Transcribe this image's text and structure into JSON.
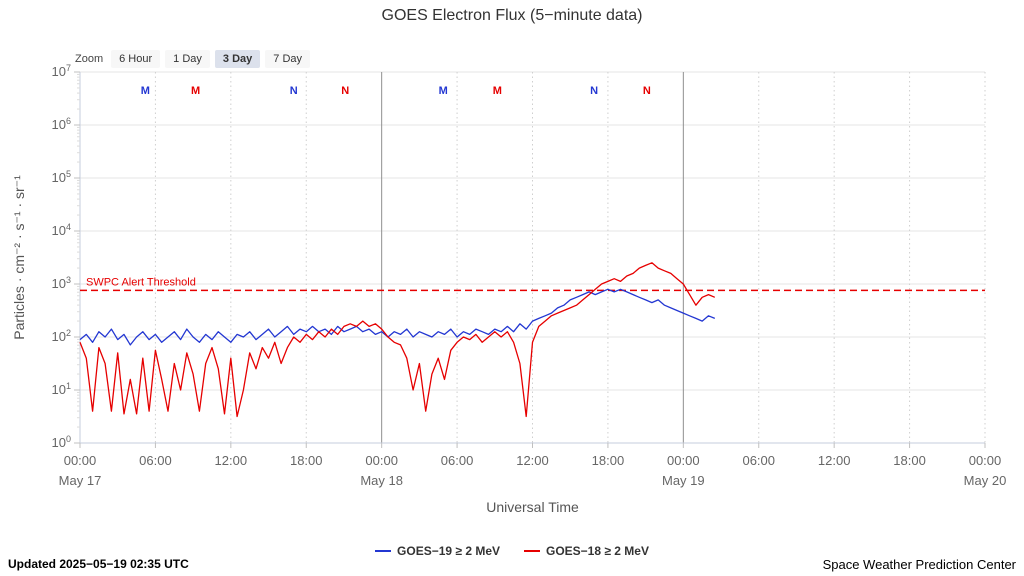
{
  "title": "GOES Electron Flux (5−minute data)",
  "zoom": {
    "label": "Zoom",
    "buttons": [
      {
        "label": "6 Hour",
        "selected": false
      },
      {
        "label": "1 Day",
        "selected": false
      },
      {
        "label": "3 Day",
        "selected": true
      },
      {
        "label": "7 Day",
        "selected": false
      }
    ]
  },
  "footer": {
    "updated": "Updated 2025−05−19 02:35 UTC",
    "source": "Space Weather Prediction Center"
  },
  "chart_data": {
    "type": "line",
    "title": "GOES Electron Flux (5−minute data)",
    "xlabel": "Universal Time",
    "ylabel": "Particles · cm⁻² · s⁻¹ · sr⁻¹",
    "x_unit": "hours since May 17 00:00 UTC",
    "x_range": [
      0,
      72
    ],
    "y_scale": "log10",
    "y_range_log": [
      0,
      7
    ],
    "y_tick_exponents": [
      0,
      1,
      2,
      3,
      4,
      5,
      6,
      7
    ],
    "grid": "on",
    "legend_position": "bottom",
    "x_ticks": [
      {
        "hour": 0,
        "label": "00:00"
      },
      {
        "hour": 6,
        "label": "06:00"
      },
      {
        "hour": 12,
        "label": "12:00"
      },
      {
        "hour": 18,
        "label": "18:00"
      },
      {
        "hour": 24,
        "label": "00:00"
      },
      {
        "hour": 30,
        "label": "06:00"
      },
      {
        "hour": 36,
        "label": "12:00"
      },
      {
        "hour": 42,
        "label": "18:00"
      },
      {
        "hour": 48,
        "label": "00:00"
      },
      {
        "hour": 54,
        "label": "06:00"
      },
      {
        "hour": 60,
        "label": "12:00"
      },
      {
        "hour": 66,
        "label": "18:00"
      },
      {
        "hour": 72,
        "label": "00:00"
      }
    ],
    "x_dates": [
      {
        "hour": 0,
        "label": "May 17"
      },
      {
        "hour": 24,
        "label": "May 18"
      },
      {
        "hour": 48,
        "label": "May 19"
      },
      {
        "hour": 72,
        "label": "May 20"
      }
    ],
    "threshold": {
      "label": "SWPC Alert Threshold",
      "log_value": 2.88,
      "color": "#e60000"
    },
    "event_markers": [
      {
        "hour": 5.2,
        "label": "M",
        "satellite": "GOES-19",
        "color": "#2337d2"
      },
      {
        "hour": 9.2,
        "label": "M",
        "satellite": "GOES-18",
        "color": "#e60000"
      },
      {
        "hour": 17.0,
        "label": "N",
        "satellite": "GOES-19",
        "color": "#2337d2"
      },
      {
        "hour": 21.1,
        "label": "N",
        "satellite": "GOES-18",
        "color": "#e60000"
      },
      {
        "hour": 28.9,
        "label": "M",
        "satellite": "GOES-19",
        "color": "#2337d2"
      },
      {
        "hour": 33.2,
        "label": "M",
        "satellite": "GOES-18",
        "color": "#e60000"
      },
      {
        "hour": 40.9,
        "label": "N",
        "satellite": "GOES-19",
        "color": "#2337d2"
      },
      {
        "hour": 45.1,
        "label": "N",
        "satellite": "GOES-18",
        "color": "#e60000"
      }
    ],
    "series": [
      {
        "name": "GOES−19 ≥ 2 MeV",
        "color": "#2337d2",
        "start_hour": 0,
        "step_hours": 0.5,
        "log10_values": [
          1.95,
          2.05,
          1.9,
          2.1,
          2.0,
          2.15,
          1.95,
          2.05,
          1.85,
          2.0,
          2.1,
          1.95,
          2.05,
          1.9,
          2.0,
          2.1,
          1.95,
          2.15,
          2.0,
          1.9,
          2.05,
          1.95,
          2.1,
          2.0,
          1.9,
          2.05,
          2.0,
          2.1,
          1.95,
          2.05,
          2.15,
          2.0,
          2.1,
          2.2,
          2.05,
          2.15,
          2.1,
          2.2,
          2.1,
          2.15,
          2.05,
          2.2,
          2.1,
          2.15,
          2.2,
          2.1,
          2.15,
          2.05,
          2.1,
          2.0,
          2.1,
          2.05,
          2.15,
          2.0,
          2.1,
          2.05,
          2.0,
          2.1,
          2.05,
          2.15,
          2.0,
          2.1,
          2.05,
          2.15,
          2.1,
          2.05,
          2.15,
          2.1,
          2.2,
          2.1,
          2.25,
          2.15,
          2.3,
          2.35,
          2.4,
          2.45,
          2.55,
          2.6,
          2.7,
          2.75,
          2.8,
          2.85,
          2.8,
          2.85,
          2.9,
          2.85,
          2.9,
          2.85,
          2.8,
          2.75,
          2.7,
          2.65,
          2.7,
          2.6,
          2.55,
          2.5,
          2.45,
          2.4,
          2.35,
          2.3,
          2.4,
          2.35
        ]
      },
      {
        "name": "GOES−18 ≥ 2 MeV",
        "color": "#e60000",
        "start_hour": 0,
        "step_hours": 0.5,
        "log10_values": [
          1.9,
          1.6,
          0.6,
          1.8,
          1.5,
          0.6,
          1.7,
          0.55,
          1.2,
          0.55,
          1.6,
          0.6,
          1.75,
          1.2,
          0.6,
          1.5,
          1.0,
          1.7,
          1.3,
          0.6,
          1.5,
          1.8,
          1.4,
          0.55,
          1.6,
          0.5,
          1.0,
          1.7,
          1.4,
          1.8,
          1.6,
          1.9,
          1.5,
          1.8,
          2.0,
          1.9,
          2.05,
          1.95,
          2.1,
          2.0,
          2.15,
          2.05,
          2.2,
          2.25,
          2.2,
          2.3,
          2.2,
          2.25,
          2.15,
          2.0,
          1.9,
          1.85,
          1.6,
          1.0,
          1.5,
          0.6,
          1.3,
          1.6,
          1.2,
          1.75,
          1.9,
          2.0,
          1.95,
          2.05,
          1.9,
          2.0,
          2.1,
          2.0,
          2.1,
          1.9,
          1.5,
          0.5,
          1.9,
          2.2,
          2.3,
          2.4,
          2.45,
          2.5,
          2.55,
          2.6,
          2.7,
          2.8,
          2.9,
          3.0,
          3.05,
          3.1,
          3.05,
          3.15,
          3.2,
          3.3,
          3.35,
          3.4,
          3.3,
          3.25,
          3.2,
          3.1,
          3.0,
          2.8,
          2.6,
          2.75,
          2.8,
          2.75
        ]
      }
    ]
  }
}
